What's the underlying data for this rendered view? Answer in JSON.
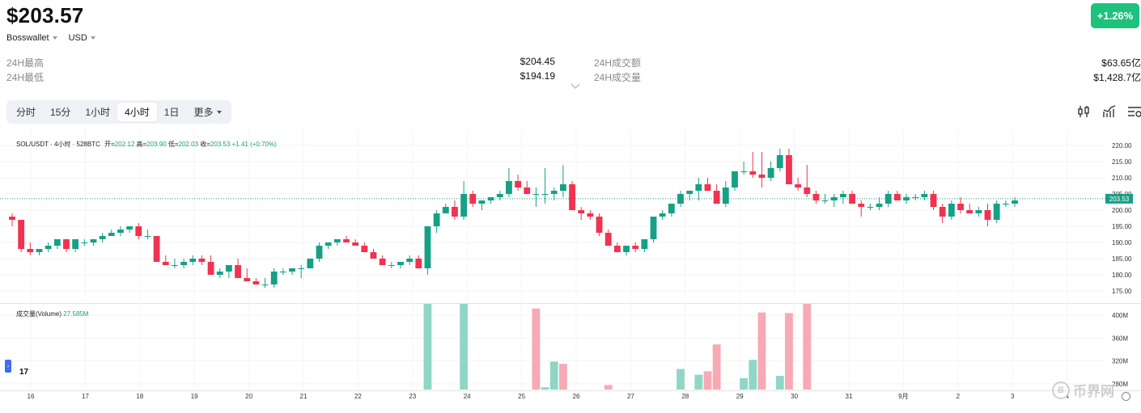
{
  "header": {
    "price": "$203.57",
    "change": "+1.26%",
    "exchange": "Bosswallet",
    "currency": "USD"
  },
  "stats": {
    "high_label": "24H最高",
    "high_value": "$204.45",
    "low_label": "24H最低",
    "low_value": "$194.19",
    "turnover_label": "24H成交额",
    "turnover_value": "$63.65亿",
    "volume_label": "24H成交量",
    "volume_value": "$1,428.7亿"
  },
  "tabs": [
    {
      "label": "分时"
    },
    {
      "label": "15分"
    },
    {
      "label": "1小时"
    },
    {
      "label": "4小时",
      "active": true
    },
    {
      "label": "1日"
    },
    {
      "label": "更多"
    }
  ],
  "icons": {
    "indicator": "candlestick-icon",
    "chart_type": "line-chart-icon",
    "settings": "chart-settings-icon"
  },
  "legend": {
    "symbol": "SOL/USDT · 4小时 · 528BTC",
    "open_label": "开=",
    "open": "202.12",
    "high_label": "高=",
    "high": "203.90",
    "low_label": "低=",
    "low": "202.03",
    "close_label": "收=",
    "close": "203.53",
    "change": "+1.41 (+0.70%)"
  },
  "volume_legend": {
    "label": "成交量(Volume)",
    "value": "27.585M"
  },
  "tv_logo": "17",
  "watermark": "币界网",
  "watermark_symbol": "B",
  "colors": {
    "up": "#16a085",
    "down": "#ef3350",
    "up_vol": "#8fd6c6",
    "down_vol": "#f7a9b5",
    "badge": "#1ec27d"
  },
  "chart_data": {
    "type": "candlestick",
    "price_ticks": [
      "220.00",
      "215.00",
      "210.00",
      "205.00",
      "200.00",
      "195.00",
      "190.00",
      "185.00",
      "180.00",
      "175.00"
    ],
    "price_range": [
      172.5,
      222.5
    ],
    "last_price": "203.53",
    "volume_ticks": [
      "400M",
      "360M",
      "320M",
      "280M"
    ],
    "volume_range": [
      270,
      420
    ],
    "x_ticks": [
      "16",
      "17",
      "18",
      "19",
      "20",
      "21",
      "22",
      "23",
      "24",
      "25",
      "26",
      "27",
      "28",
      "29",
      "30",
      "31",
      "9月",
      "2",
      "3",
      "4"
    ],
    "candles_ohlc": [
      [
        198,
        199,
        195,
        197
      ],
      [
        197,
        197,
        187,
        188
      ],
      [
        188,
        190,
        186,
        187
      ],
      [
        187,
        188,
        186,
        188
      ],
      [
        188,
        190,
        187,
        189
      ],
      [
        189,
        191,
        188,
        191
      ],
      [
        191,
        191,
        187,
        188
      ],
      [
        188,
        191,
        187,
        191
      ],
      [
        190,
        191,
        189,
        190
      ],
      [
        190,
        191,
        189,
        191
      ],
      [
        191,
        193,
        190,
        192
      ],
      [
        192,
        194,
        192,
        193
      ],
      [
        193,
        195,
        192,
        194
      ],
      [
        194,
        195,
        193,
        195
      ],
      [
        195,
        196,
        191,
        192
      ],
      [
        192,
        194,
        191,
        192
      ],
      [
        192,
        192,
        184,
        184
      ],
      [
        184,
        186,
        183,
        183
      ],
      [
        183,
        185,
        182,
        183
      ],
      [
        183,
        185,
        182,
        184
      ],
      [
        184,
        186,
        183,
        185
      ],
      [
        185,
        186,
        183,
        184
      ],
      [
        184,
        186,
        182,
        180
      ],
      [
        180,
        182,
        179,
        181
      ],
      [
        181,
        182,
        179,
        183
      ],
      [
        183,
        185,
        182,
        179
      ],
      [
        179,
        182,
        178,
        178
      ],
      [
        178,
        179,
        177,
        177
      ],
      [
        177,
        179,
        176,
        177
      ],
      [
        177,
        182,
        176,
        181
      ],
      [
        181,
        182,
        180,
        181
      ],
      [
        181,
        182,
        180,
        182
      ],
      [
        182,
        183,
        179,
        182
      ],
      [
        182,
        185,
        182,
        185
      ],
      [
        185,
        190,
        184,
        189
      ],
      [
        189,
        190,
        188,
        190
      ],
      [
        190,
        191,
        189,
        191
      ],
      [
        191,
        192,
        190,
        190
      ],
      [
        190,
        191,
        189,
        189
      ],
      [
        189,
        190,
        187,
        187
      ],
      [
        187,
        188,
        185,
        185
      ],
      [
        185,
        186,
        183,
        183
      ],
      [
        183,
        184,
        182,
        183
      ],
      [
        183,
        184,
        182,
        184
      ],
      [
        184,
        186,
        183,
        185
      ],
      [
        185,
        186,
        182,
        182
      ],
      [
        182,
        195,
        180,
        195
      ],
      [
        195,
        200,
        193,
        199
      ],
      [
        199,
        202,
        199,
        201
      ],
      [
        201,
        203,
        197,
        198
      ],
      [
        198,
        209,
        197,
        205
      ],
      [
        205,
        206,
        201,
        202
      ],
      [
        202,
        203,
        200,
        203
      ],
      [
        203,
        204,
        202,
        204
      ],
      [
        204,
        206,
        203,
        205
      ],
      [
        205,
        213,
        204,
        209
      ],
      [
        209,
        211,
        206,
        207
      ],
      [
        207,
        209,
        205,
        205
      ],
      [
        205,
        207,
        201,
        205
      ],
      [
        205,
        213,
        202,
        205
      ],
      [
        205,
        207,
        203,
        206
      ],
      [
        206,
        214,
        204,
        208
      ],
      [
        208,
        209,
        200,
        200
      ],
      [
        200,
        201,
        197,
        199
      ],
      [
        199,
        200,
        197,
        198
      ],
      [
        198,
        199,
        192,
        193
      ],
      [
        193,
        194,
        189,
        189
      ],
      [
        189,
        190,
        187,
        187
      ],
      [
        187,
        189,
        186,
        189
      ],
      [
        189,
        190,
        187,
        188
      ],
      [
        188,
        191,
        187,
        191
      ],
      [
        191,
        198,
        190,
        198
      ],
      [
        198,
        200,
        197,
        199
      ],
      [
        199,
        202,
        198,
        202
      ],
      [
        202,
        206,
        201,
        205
      ],
      [
        205,
        206,
        203,
        206
      ],
      [
        206,
        210,
        203,
        208
      ],
      [
        208,
        210,
        207,
        206
      ],
      [
        206,
        208,
        202,
        202
      ],
      [
        202,
        209,
        201,
        207
      ],
      [
        207,
        212,
        206,
        212
      ],
      [
        212,
        215,
        211,
        212
      ],
      [
        212,
        218,
        210,
        211
      ],
      [
        211,
        218,
        207,
        210
      ],
      [
        210,
        215,
        209,
        213
      ],
      [
        213,
        219,
        212,
        217
      ],
      [
        217,
        219,
        208,
        208
      ],
      [
        208,
        210,
        206,
        207
      ],
      [
        207,
        214,
        204,
        205
      ],
      [
        205,
        206,
        202,
        203
      ],
      [
        203,
        205,
        202,
        203
      ],
      [
        203,
        205,
        201,
        204
      ],
      [
        204,
        206,
        202,
        205
      ],
      [
        205,
        206,
        202,
        202
      ],
      [
        202,
        203,
        198,
        201
      ],
      [
        201,
        202,
        200,
        201
      ],
      [
        201,
        204,
        200,
        202
      ],
      [
        202,
        206,
        201,
        205
      ],
      [
        205,
        206,
        203,
        203
      ],
      [
        203,
        205,
        202,
        204
      ],
      [
        204,
        205,
        203,
        204
      ],
      [
        204,
        206,
        203,
        205
      ],
      [
        205,
        206,
        200,
        201
      ],
      [
        201,
        202,
        196,
        198
      ],
      [
        198,
        203,
        197,
        202
      ],
      [
        202,
        204,
        199,
        200
      ],
      [
        200,
        202,
        199,
        199
      ],
      [
        199,
        201,
        198,
        200
      ],
      [
        200,
        202,
        195,
        197
      ],
      [
        197,
        203,
        196,
        202
      ],
      [
        202,
        203,
        201,
        202
      ],
      [
        202,
        204,
        201,
        203
      ]
    ],
    "volume_bars": [
      {
        "i": 46,
        "v": 425,
        "up": true
      },
      {
        "i": 50,
        "v": 425,
        "up": true
      },
      {
        "i": 58,
        "v": 412,
        "up": false
      },
      {
        "i": 59,
        "v": 274,
        "up": true
      },
      {
        "i": 60,
        "v": 319,
        "up": true
      },
      {
        "i": 61,
        "v": 315,
        "up": false
      },
      {
        "i": 66,
        "v": 278,
        "up": false
      },
      {
        "i": 74,
        "v": 306,
        "up": true
      },
      {
        "i": 76,
        "v": 296,
        "up": true
      },
      {
        "i": 77,
        "v": 302,
        "up": false
      },
      {
        "i": 78,
        "v": 349,
        "up": false
      },
      {
        "i": 81,
        "v": 290,
        "up": true
      },
      {
        "i": 82,
        "v": 322,
        "up": true
      },
      {
        "i": 83,
        "v": 405,
        "up": false
      },
      {
        "i": 85,
        "v": 294,
        "up": true
      },
      {
        "i": 86,
        "v": 404,
        "up": false
      },
      {
        "i": 88,
        "v": 425,
        "up": false
      }
    ]
  }
}
